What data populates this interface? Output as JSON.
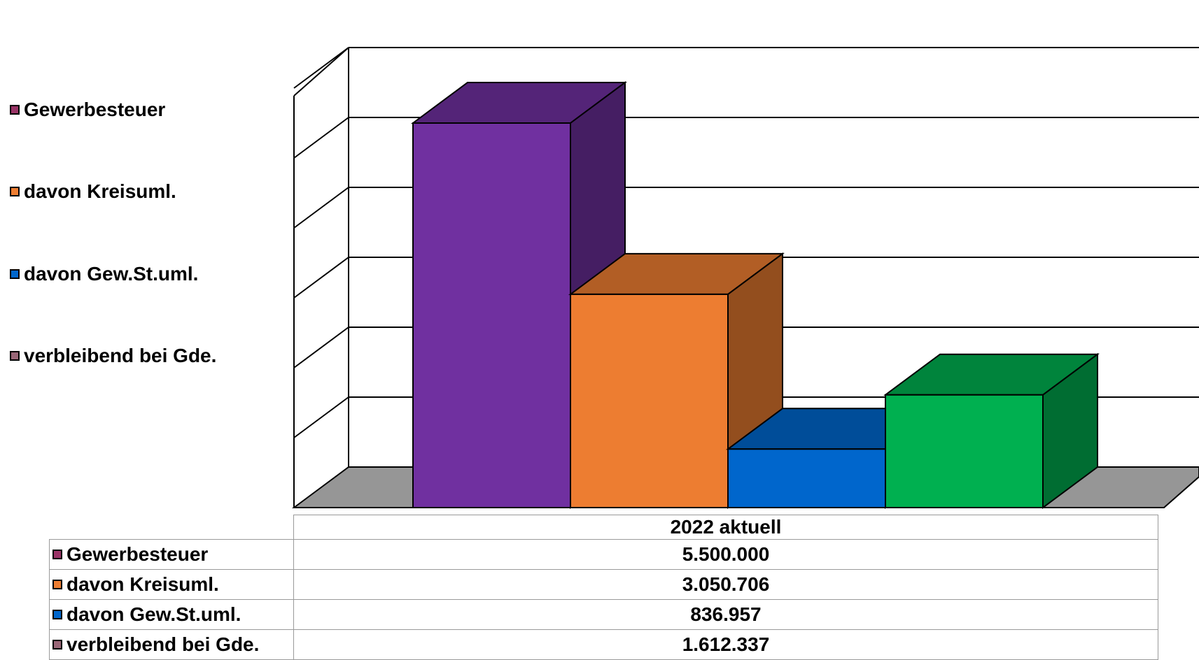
{
  "chart_data": {
    "type": "bar",
    "categories": [
      "2022 aktuell"
    ],
    "series": [
      {
        "name": "Gewerbesteuer",
        "values": [
          5500000
        ],
        "color": "#7030A0"
      },
      {
        "name": "davon Kreisuml.",
        "values": [
          3050706
        ],
        "color": "#ED7D31"
      },
      {
        "name": "davon Gew.St.uml.",
        "values": [
          836957
        ],
        "color": "#0066CC"
      },
      {
        "name": "verbleibend bei Gde.",
        "values": [
          1612337
        ],
        "color": "#00B050"
      }
    ],
    "value_labels": [
      "5.500.000",
      "3.050.706",
      "836.957",
      "1.612.337"
    ],
    "legend_swatch_colors": [
      "#993366",
      "#ED7D31",
      "#0066CC",
      "#996677"
    ],
    "ylim": [
      0,
      6000000
    ],
    "grid": true,
    "three_d": true,
    "legend_position": "left",
    "data_table": true
  }
}
